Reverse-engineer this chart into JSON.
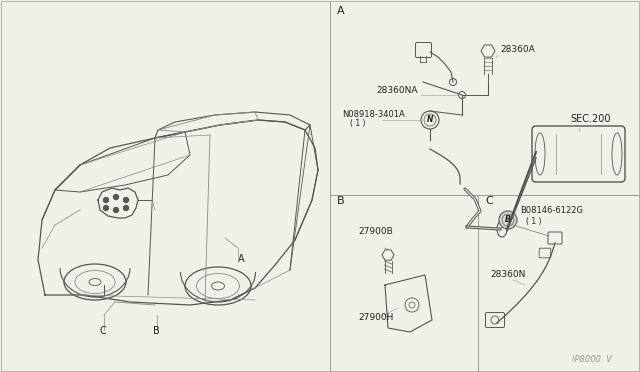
{
  "bg_color": "#f0efe8",
  "line_color": "#999999",
  "dark_line": "#555555",
  "thin_line": "#888888",
  "title_color": "#222222",
  "fig_width": 6.4,
  "fig_height": 3.72,
  "watermark": "IP8000  V",
  "labels": {
    "panel_A": "A",
    "panel_B": "B",
    "panel_C": "C",
    "part_28360A": "28360A",
    "part_28360NA": "28360NA",
    "part_N_label": "N08918-3401A",
    "part_N_sub": "( 1 )",
    "part_SEC200": "SEC.200",
    "part_27900B": "27900B",
    "part_27900H": "27900H",
    "part_B_label": "B08146-6122G",
    "part_B_sub": "( 1 )",
    "part_28360N": "28360N"
  }
}
